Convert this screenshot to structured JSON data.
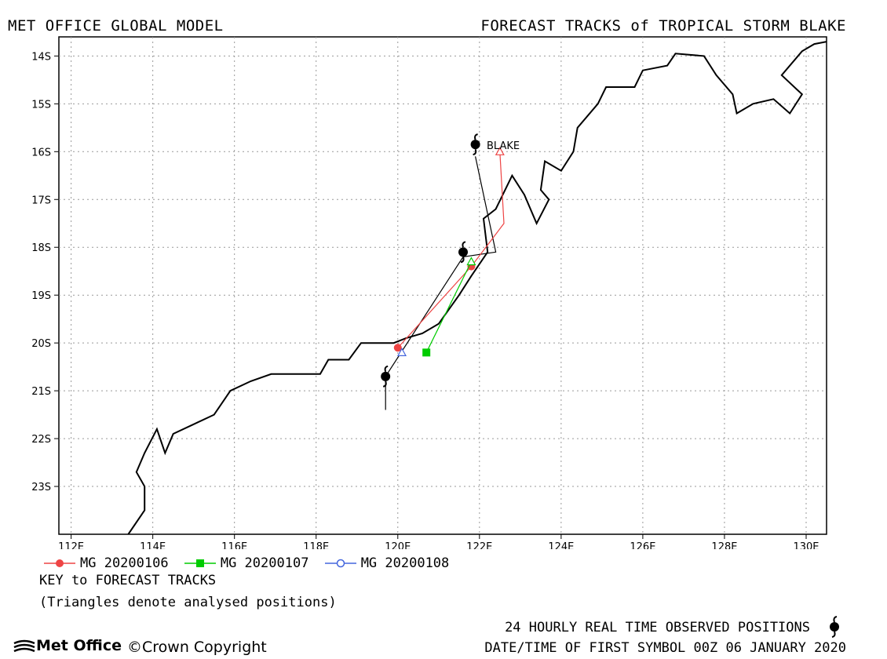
{
  "header": {
    "left_title": "MET OFFICE GLOBAL MODEL",
    "right_title": "FORECAST TRACKS of TROPICAL STORM BLAKE"
  },
  "map": {
    "lon_range": [
      111.7,
      130.5
    ],
    "lat_range": [
      -24.0,
      -13.6
    ],
    "lon_ticks": [
      "112E",
      "114E",
      "116E",
      "118E",
      "120E",
      "122E",
      "124E",
      "126E",
      "128E",
      "130E"
    ],
    "lat_ticks": [
      "14S",
      "15S",
      "16S",
      "17S",
      "18S",
      "19S",
      "20S",
      "21S",
      "22S",
      "23S"
    ],
    "grid": "dotted",
    "storm_label": "BLAKE",
    "coastline": [
      [
        113.4,
        -24.0
      ],
      [
        113.8,
        -23.5
      ],
      [
        113.8,
        -23.0
      ],
      [
        113.6,
        -22.7
      ],
      [
        113.8,
        -22.3
      ],
      [
        114.1,
        -21.8
      ],
      [
        114.3,
        -22.3
      ],
      [
        114.5,
        -21.9
      ],
      [
        115.0,
        -21.7
      ],
      [
        115.5,
        -21.5
      ],
      [
        115.9,
        -21.0
      ],
      [
        116.4,
        -20.8
      ],
      [
        116.9,
        -20.65
      ],
      [
        118.1,
        -20.65
      ],
      [
        118.3,
        -20.35
      ],
      [
        118.8,
        -20.35
      ],
      [
        119.1,
        -20.0
      ],
      [
        119.6,
        -20.0
      ],
      [
        119.9,
        -20.0
      ],
      [
        120.2,
        -19.9
      ],
      [
        120.6,
        -19.8
      ],
      [
        121.0,
        -19.6
      ],
      [
        121.5,
        -19.0
      ],
      [
        121.8,
        -18.6
      ],
      [
        122.2,
        -18.1
      ],
      [
        122.1,
        -17.4
      ],
      [
        122.4,
        -17.2
      ],
      [
        122.8,
        -16.5
      ],
      [
        123.1,
        -16.9
      ],
      [
        123.4,
        -17.5
      ],
      [
        123.7,
        -17.0
      ],
      [
        123.5,
        -16.8
      ],
      [
        123.6,
        -16.2
      ],
      [
        124.0,
        -16.4
      ],
      [
        124.3,
        -16.0
      ],
      [
        124.4,
        -15.5
      ],
      [
        124.9,
        -15.0
      ],
      [
        125.1,
        -14.65
      ],
      [
        125.8,
        -14.65
      ],
      [
        126.0,
        -14.3
      ],
      [
        126.6,
        -14.2
      ],
      [
        126.8,
        -13.95
      ],
      [
        127.5,
        -14.0
      ],
      [
        127.8,
        -14.4
      ],
      [
        128.2,
        -14.8
      ],
      [
        128.3,
        -15.2
      ],
      [
        128.7,
        -15.0
      ],
      [
        129.2,
        -14.9
      ],
      [
        129.6,
        -15.2
      ],
      [
        129.9,
        -14.8
      ],
      [
        129.4,
        -14.4
      ],
      [
        129.9,
        -13.9
      ],
      [
        130.2,
        -13.75
      ],
      [
        130.5,
        -13.7
      ]
    ]
  },
  "tracks": [
    {
      "id": "mg20200106",
      "label": "MG 20200106",
      "color": "#ee4444",
      "marker": "circle-filled",
      "analysed": [
        [
          122.5,
          -16.0
        ],
        [
          122.6,
          -17.5
        ]
      ],
      "points": [
        [
          121.8,
          -18.4
        ],
        [
          120.0,
          -20.1
        ]
      ]
    },
    {
      "id": "mg20200107",
      "label": "MG 20200107",
      "color": "#00cc00",
      "marker": "square-filled",
      "analysed": [
        [
          121.8,
          -18.3
        ]
      ],
      "points": [
        [
          120.7,
          -20.2
        ]
      ]
    },
    {
      "id": "mg20200108",
      "label": "MG 20200108",
      "color": "#4466dd",
      "marker": "circle-open",
      "analysed": [
        [
          120.1,
          -20.2
        ]
      ],
      "points": []
    }
  ],
  "observed": {
    "points": [
      [
        121.9,
        -15.85
      ],
      [
        121.6,
        -18.1
      ],
      [
        119.7,
        -20.7
      ]
    ],
    "track": [
      [
        121.9,
        -16.1
      ],
      [
        122.4,
        -18.1
      ],
      [
        121.6,
        -18.2
      ],
      [
        119.7,
        -20.7
      ],
      [
        119.7,
        -21.4
      ]
    ]
  },
  "legend": {
    "key_title": "KEY to FORECAST TRACKS",
    "key_note": "(Triangles denote analysed positions)"
  },
  "footer": {
    "observed_note": "24 HOURLY REAL TIME OBSERVED POSITIONS",
    "date_note": "DATE/TIME OF FIRST SYMBOL 00Z 06 JANUARY 2020",
    "logo_text": "Met Office",
    "copyright": "Crown Copyright"
  }
}
